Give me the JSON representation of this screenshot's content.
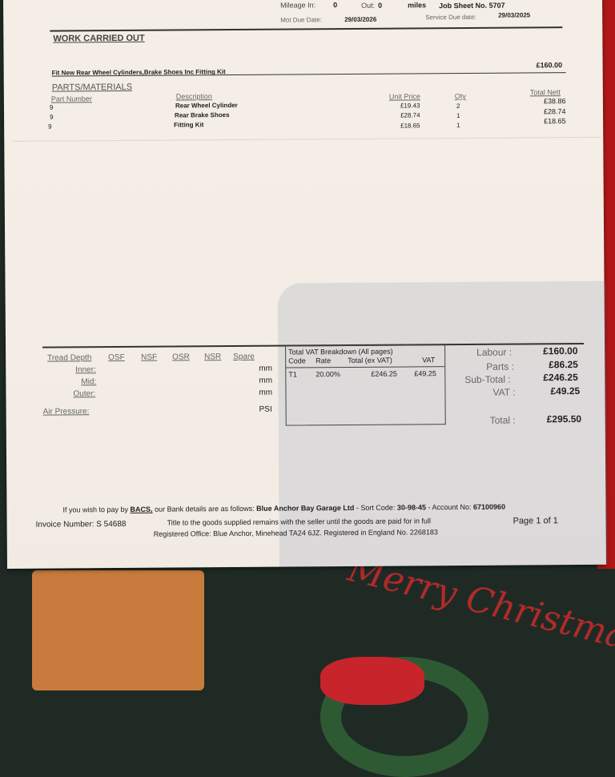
{
  "header": {
    "mileage_in_label": "Mileage In:",
    "mileage_in": "0",
    "out_label": "Out:",
    "out": "0",
    "miles_label": "miles",
    "job_sheet": "Job Sheet No. 5707",
    "mot_label": "Mot Due Date:",
    "mot_date": "29/03/2026",
    "service_label": "Service Due date:",
    "service_date": "29/03/2025"
  },
  "work": {
    "title": "WORK CARRIED OUT",
    "description": "Fit New Rear Wheel Cylinders,Brake Shoes Inc Fitting Kit",
    "amount": "£160.00"
  },
  "parts": {
    "title": "PARTS/MATERIALS",
    "columns": [
      "Part Number",
      "Description",
      "Unit Price",
      "Qty",
      "Total Nett"
    ],
    "rows": [
      [
        "9",
        "Rear Wheel Cylinder",
        "£19.43",
        "2",
        "£38.86"
      ],
      [
        "9",
        "Rear Brake Shoes",
        "£28.74",
        "1",
        "£28.74"
      ],
      [
        "9",
        "Fitting Kit",
        "£18.65",
        "1",
        "£18.65"
      ]
    ]
  },
  "tyres": {
    "tread_label": "Tread Depth",
    "cols": [
      "OSF",
      "NSF",
      "OSR",
      "NSR",
      "Spare"
    ],
    "inner": "Inner:",
    "mid": "Mid:",
    "outer": "Outer:",
    "mm": "mm",
    "air": "Air Pressure:",
    "psi": "PSI"
  },
  "vat": {
    "title": "Total VAT Breakdown (All pages)",
    "columns": [
      "Code",
      "Rate",
      "Total (ex VAT)",
      "VAT"
    ],
    "row": [
      "T1",
      "20.00%",
      "£246.25",
      "£49.25"
    ]
  },
  "totals": {
    "labour_label": "Labour :",
    "labour": "£160.00",
    "parts_label": "Parts :",
    "parts": "£86.25",
    "subtotal_label": "Sub-Total :",
    "subtotal": "£246.25",
    "vat_label": "VAT :",
    "vat": "£49.25",
    "total_label": "Total :",
    "total": "£295.50"
  },
  "footer": {
    "bacs_pre": "If you wish to pay by",
    "bacs": "BACS,",
    "bacs_post": "our Bank details are as follows:",
    "company": "Blue Anchor Bay Garage Ltd",
    "sort_label": "- Sort Code:",
    "sort": "30-98-45",
    "account_label": "- Account No:",
    "account": "67100960",
    "invoice": "Invoice Number: S 54688",
    "title_note": "Title to the goods supplied remains with the seller until the goods are paid for in full",
    "page": "Page  1 of 1",
    "registered": "Registered Office: Blue Anchor, Minehead TA24 6JZ. Registered in England No. 2268183"
  },
  "background": {
    "text": "Merry Christmas"
  }
}
